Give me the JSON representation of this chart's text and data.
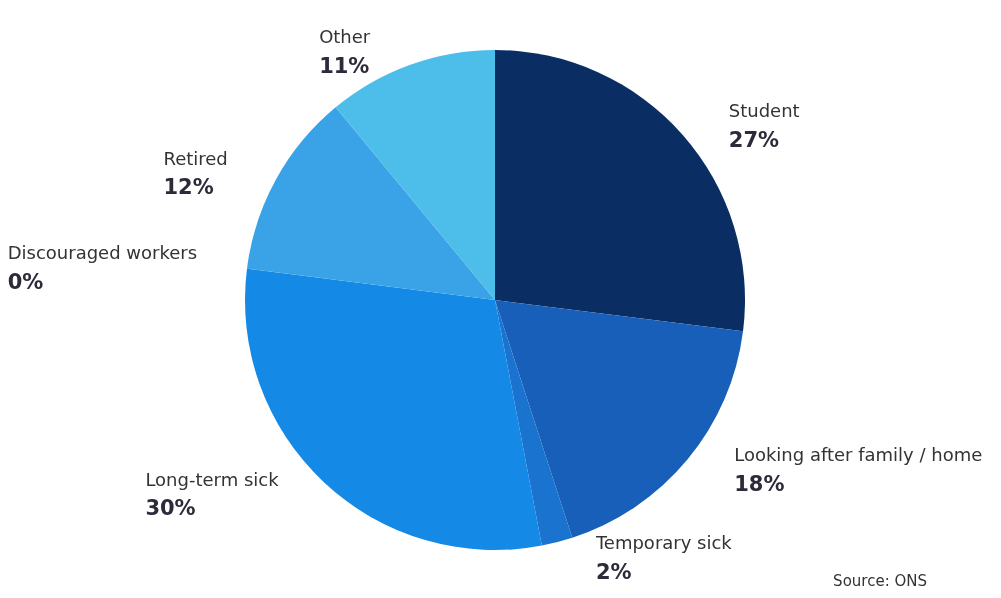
{
  "chart_data": {
    "type": "pie",
    "categories": [
      "Student",
      "Looking after family / home",
      "Temporary sick",
      "Long-term sick",
      "Discouraged workers",
      "Retired",
      "Other"
    ],
    "values": [
      27,
      18,
      2,
      30,
      0,
      12,
      11
    ],
    "value_labels": [
      "27%",
      "18%",
      "2%",
      "30%",
      "0%",
      "12%",
      "11%"
    ],
    "colors": [
      "#0a2d63",
      "#175fb8",
      "#1a73cf",
      "#1589e6",
      "#2a96e6",
      "#3aa3e8",
      "#4dbde9"
    ],
    "annotations": [
      "Source: ONS"
    ]
  }
}
